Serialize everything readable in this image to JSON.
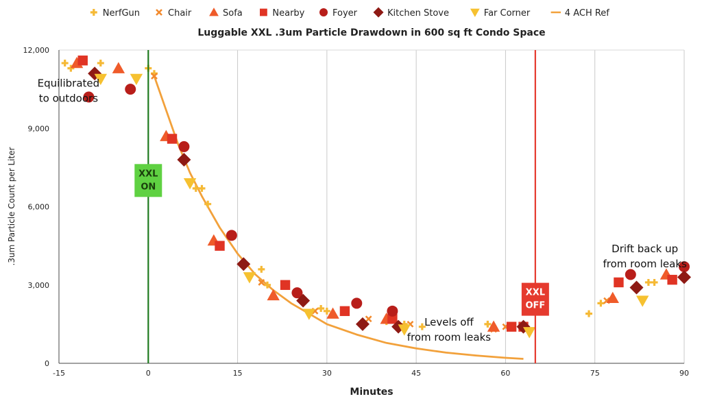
{
  "chart_data": {
    "type": "scatter",
    "title": "Luggable XXL .3um Particle Drawdown in 600 sq ft Condo Space",
    "xlabel": "Minutes",
    "ylabel": ".3um Particle Count per Liter",
    "xlim": [
      -15,
      90
    ],
    "ylim": [
      0,
      12000
    ],
    "x_ticks": [
      "-15",
      "0",
      "15",
      "30",
      "45",
      "60",
      "75",
      "90"
    ],
    "x_tick_values": [
      -15,
      0,
      15,
      30,
      45,
      60,
      75,
      90
    ],
    "y_ticks": [
      "0",
      "3,000",
      "6,000",
      "9,000",
      "12,000"
    ],
    "y_tick_values": [
      0,
      3000,
      6000,
      9000,
      12000
    ],
    "grid": "vertical",
    "legend_position": "top",
    "series": [
      {
        "name": "NerfGun",
        "marker": "plus",
        "color": "#f5b935",
        "x": [
          -14,
          -13,
          -8,
          0,
          1,
          8,
          9,
          10,
          19,
          20,
          29,
          30,
          40,
          43,
          46,
          57,
          74,
          76,
          84,
          85
        ],
        "y": [
          11500,
          11300,
          11500,
          11300,
          11100,
          6700,
          6700,
          6100,
          3600,
          3000,
          2100,
          2000,
          1600,
          1500,
          1400,
          1500,
          1900,
          2300,
          3100,
          3100
        ]
      },
      {
        "name": "Chair",
        "marker": "x",
        "color": "#f28a2d",
        "x": [
          1,
          19,
          28,
          37,
          44,
          58,
          60,
          77
        ],
        "y": [
          11000,
          3100,
          2000,
          1700,
          1500,
          1300,
          1400,
          2400
        ]
      },
      {
        "name": "Sofa",
        "marker": "triangle",
        "color": "#ef5b2a",
        "x": [
          -12,
          -5,
          3,
          11,
          21,
          31,
          40,
          58,
          78,
          87
        ],
        "y": [
          11500,
          11300,
          8700,
          4700,
          2600,
          1900,
          1700,
          1400,
          2500,
          3400
        ]
      },
      {
        "name": "Nearby",
        "marker": "square",
        "color": "#e03424",
        "x": [
          -11,
          4,
          12,
          23,
          33,
          41,
          61,
          63,
          79,
          88
        ],
        "y": [
          11600,
          8600,
          4500,
          3000,
          2000,
          1700,
          1400,
          1400,
          3100,
          3200
        ]
      },
      {
        "name": "Foyer",
        "marker": "circle",
        "color": "#b81e1a",
        "x": [
          -10,
          -3,
          6,
          14,
          25,
          35,
          41,
          81,
          90
        ],
        "y": [
          10200,
          10500,
          8300,
          4900,
          2700,
          2300,
          2000,
          3400,
          3700
        ]
      },
      {
        "name": "Kitchen Stove",
        "marker": "diamond",
        "color": "#8e1a14",
        "x": [
          -9,
          6,
          16,
          26,
          36,
          42,
          63,
          82,
          90
        ],
        "y": [
          11100,
          7800,
          3800,
          2400,
          1500,
          1400,
          1400,
          2900,
          3300
        ]
      },
      {
        "name": "Far Corner",
        "marker": "down-triangle",
        "color": "#f6c130",
        "x": [
          -8,
          -2,
          7,
          17,
          27,
          43,
          64,
          83
        ],
        "y": [
          10900,
          10900,
          6900,
          3300,
          1900,
          1300,
          1200,
          2400
        ]
      },
      {
        "name": "4 ACH Ref",
        "marker": "line",
        "color": "#f2a13b",
        "x": [
          1,
          3,
          5,
          7,
          9,
          12,
          15,
          18,
          21,
          24,
          27,
          30,
          35,
          40,
          45,
          50,
          55,
          60,
          63
        ],
        "y": [
          11000,
          9700,
          8400,
          7300,
          6400,
          5200,
          4200,
          3400,
          2800,
          2300,
          1900,
          1500,
          1100,
          780,
          570,
          410,
          300,
          210,
          170
        ]
      }
    ],
    "vlines": [
      {
        "x": 0,
        "color": "#1f7a1f",
        "label_lines": [
          "XXL",
          "ON"
        ],
        "box_color": "#5fd142",
        "text_color": "#1a3f0c",
        "box_y": 6950
      },
      {
        "x": 65,
        "color": "#e53a2e",
        "label_lines": [
          "XXL",
          "OFF"
        ],
        "box_color": "#e53a2e",
        "text_color": "#ffffff",
        "box_y": 2400
      }
    ],
    "annotations": [
      {
        "lines": [
          "Equilibrated",
          "to outdoors"
        ],
        "x": -13.4,
        "y": 10600,
        "anchor": "middle"
      },
      {
        "lines": [
          "Levels off",
          "from room leaks"
        ],
        "x": 50.5,
        "y": 1450,
        "anchor": "middle"
      },
      {
        "lines": [
          "Drift back up",
          "from room leaks"
        ],
        "x": 83.4,
        "y": 4250,
        "anchor": "middle"
      }
    ]
  }
}
